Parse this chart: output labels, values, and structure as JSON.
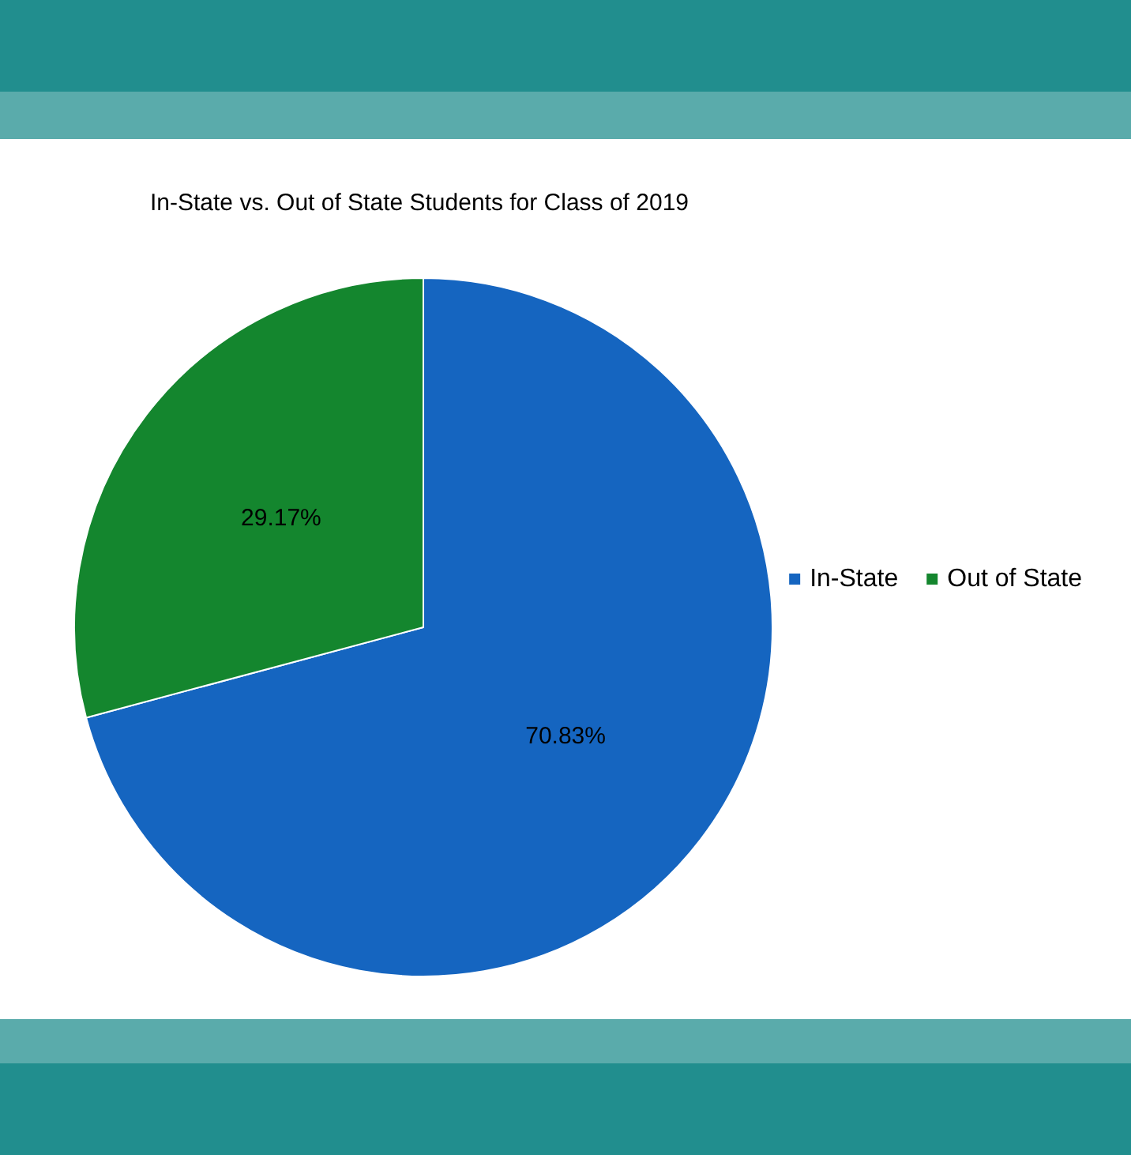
{
  "chart_data": {
    "type": "pie",
    "title": "In-State vs. Out of State Students for Class of 2019",
    "categories": [
      "In-State",
      "Out of State"
    ],
    "values": [
      70.83,
      29.17
    ],
    "value_labels": [
      "70.83%",
      "29.17%"
    ],
    "colors": [
      "#1565c0",
      "#14862e"
    ],
    "legend": "right"
  }
}
